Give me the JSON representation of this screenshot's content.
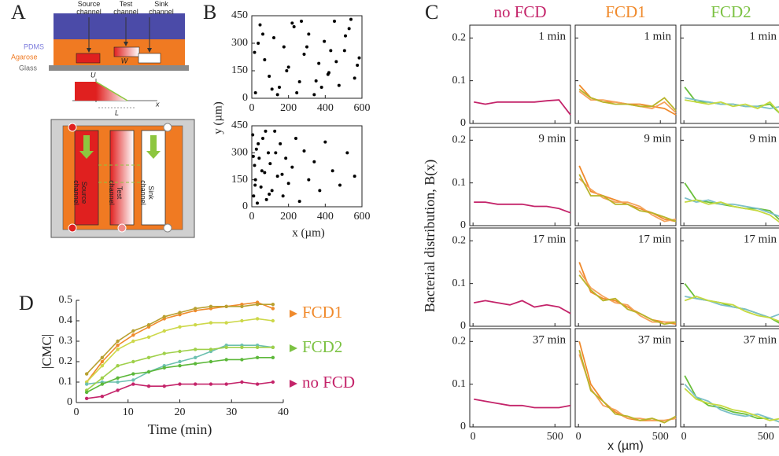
{
  "diagram": {
    "label": "A",
    "cross_section": {
      "channels": [
        [
          "Source",
          "channel"
        ],
        [
          "Test",
          "channel"
        ],
        [
          "Sink",
          "channel"
        ]
      ],
      "layers": [
        "PDMS",
        "Agarose",
        "Glass"
      ],
      "width": "W"
    },
    "profile": {
      "y_label": "U",
      "x_label": "x",
      "length": "L"
    },
    "device": {
      "channels": [
        [
          "Source",
          "channel"
        ],
        [
          "Test",
          "channel"
        ],
        [
          "Sink",
          "channel"
        ]
      ]
    }
  },
  "panel_B": {
    "label": "B",
    "ylabel": "y (µm)",
    "xlabel": "x (µm)"
  },
  "panel_C": {
    "label": "C",
    "columns": [
      {
        "text": "no FCD",
        "color": "#c4246a"
      },
      {
        "text": "FCD1",
        "color": "#f08a2c"
      },
      {
        "text": "FCD2",
        "color": "#7cc243"
      }
    ],
    "ylabel": "Bacterial distribution, B(x)",
    "xlabel": "x (µm)"
  },
  "chart_data": [
    {
      "type": "scatter",
      "color": "#000000",
      "xlim": [
        0,
        600
      ],
      "ylim": [
        0,
        450
      ],
      "xticks": [
        0,
        200,
        400,
        600
      ],
      "yticks": [
        0,
        150,
        300,
        450
      ],
      "x": [
        20,
        45,
        70,
        95,
        120,
        150,
        175,
        200,
        230,
        260,
        285,
        310,
        340,
        365,
        395,
        420,
        450,
        475,
        505,
        530,
        560,
        585,
        35,
        110,
        190,
        270,
        350,
        430,
        510,
        575,
        60,
        140,
        220,
        300,
        380,
        460,
        540,
        15,
        245,
        415
      ],
      "y": [
        30,
        400,
        210,
        120,
        330,
        60,
        280,
        170,
        390,
        90,
        240,
        350,
        20,
        190,
        310,
        140,
        420,
        70,
        260,
        380,
        110,
        220,
        300,
        50,
        150,
        420,
        95,
        260,
        340,
        180,
        350,
        20,
        410,
        280,
        60,
        200,
        430,
        250,
        30,
        130
      ]
    },
    {
      "type": "scatter",
      "color": "#000000",
      "xlim": [
        0,
        600
      ],
      "ylim": [
        0,
        450
      ],
      "xticks": [
        0,
        200,
        400,
        600
      ],
      "yticks": [
        0,
        150,
        300,
        450
      ],
      "x": [
        5,
        10,
        15,
        20,
        25,
        30,
        40,
        50,
        60,
        70,
        80,
        90,
        100,
        110,
        125,
        140,
        155,
        170,
        185,
        200,
        220,
        240,
        260,
        285,
        310,
        340,
        370,
        400,
        440,
        480,
        520,
        560,
        8,
        18,
        35,
        55,
        75,
        95,
        130,
        165
      ],
      "y": [
        400,
        60,
        230,
        150,
        320,
        20,
        270,
        110,
        380,
        190,
        40,
        300,
        240,
        90,
        420,
        170,
        350,
        60,
        270,
        130,
        220,
        380,
        30,
        310,
        150,
        250,
        90,
        360,
        200,
        120,
        300,
        170,
        280,
        120,
        350,
        200,
        420,
        70,
        300,
        180
      ]
    },
    {
      "type": "line",
      "title": "1 min",
      "xlim": [
        -20,
        595
      ],
      "ylim": [
        0,
        0.23
      ],
      "xticks": [
        0,
        500
      ],
      "yticks": [
        0,
        0.1,
        0.2
      ],
      "x": [
        5,
        75,
        150,
        225,
        300,
        375,
        450,
        525,
        595
      ],
      "series": [
        {
          "color": "#c4246a",
          "values": [
            0.05,
            0.045,
            0.05,
            0.05,
            0.05,
            0.05,
            0.053,
            0.055,
            0.02
          ]
        }
      ]
    },
    {
      "type": "line",
      "title": "1 min",
      "xlim": [
        -20,
        595
      ],
      "ylim": [
        0,
        0.23
      ],
      "xticks": [
        0,
        500
      ],
      "yticks": [
        0,
        0.1,
        0.2
      ],
      "x": [
        5,
        75,
        150,
        225,
        300,
        375,
        450,
        525,
        595
      ],
      "series": [
        {
          "color": "#f08a2c",
          "values": [
            0.09,
            0.06,
            0.05,
            0.05,
            0.045,
            0.045,
            0.04,
            0.035,
            0.02
          ]
        },
        {
          "color": "#f5a25a",
          "values": [
            0.075,
            0.055,
            0.055,
            0.05,
            0.045,
            0.04,
            0.035,
            0.05,
            0.025
          ]
        },
        {
          "color": "#b8b429",
          "values": [
            0.08,
            0.06,
            0.05,
            0.045,
            0.045,
            0.04,
            0.04,
            0.06,
            0.03
          ]
        }
      ]
    },
    {
      "type": "line",
      "title": "1 min",
      "xlim": [
        -20,
        595
      ],
      "ylim": [
        0,
        0.23
      ],
      "xticks": [
        0,
        500
      ],
      "yticks": [
        0,
        0.1,
        0.2
      ],
      "x": [
        5,
        75,
        150,
        225,
        300,
        375,
        450,
        525,
        595
      ],
      "series": [
        {
          "color": "#6abf3c",
          "values": [
            0.085,
            0.05,
            0.05,
            0.045,
            0.045,
            0.04,
            0.04,
            0.045,
            0.02
          ]
        },
        {
          "color": "#7bbfc8",
          "values": [
            0.06,
            0.055,
            0.05,
            0.045,
            0.045,
            0.04,
            0.04,
            0.035,
            0.04
          ]
        },
        {
          "color": "#c5d940",
          "values": [
            0.055,
            0.05,
            0.045,
            0.05,
            0.04,
            0.045,
            0.035,
            0.05,
            0.02
          ]
        }
      ]
    },
    {
      "type": "line",
      "title": "9 min",
      "xlim": [
        -20,
        595
      ],
      "ylim": [
        0,
        0.23
      ],
      "xticks": [
        0,
        500
      ],
      "yticks": [
        0,
        0.1,
        0.2
      ],
      "x": [
        5,
        75,
        150,
        225,
        300,
        375,
        450,
        525,
        595
      ],
      "series": [
        {
          "color": "#c4246a",
          "values": [
            0.055,
            0.055,
            0.05,
            0.05,
            0.05,
            0.045,
            0.045,
            0.04,
            0.03
          ]
        }
      ]
    },
    {
      "type": "line",
      "title": "9 min",
      "xlim": [
        -20,
        595
      ],
      "ylim": [
        0,
        0.23
      ],
      "xticks": [
        0,
        500
      ],
      "yticks": [
        0,
        0.1,
        0.2
      ],
      "x": [
        5,
        75,
        150,
        225,
        300,
        375,
        450,
        525,
        595
      ],
      "series": [
        {
          "color": "#f08a2c",
          "values": [
            0.14,
            0.08,
            0.07,
            0.06,
            0.05,
            0.04,
            0.03,
            0.015,
            0.01
          ]
        },
        {
          "color": "#f5a25a",
          "values": [
            0.11,
            0.085,
            0.065,
            0.055,
            0.055,
            0.045,
            0.025,
            0.01,
            0.015
          ]
        },
        {
          "color": "#b8b429",
          "values": [
            0.12,
            0.07,
            0.07,
            0.05,
            0.05,
            0.035,
            0.03,
            0.02,
            0.01
          ]
        }
      ]
    },
    {
      "type": "line",
      "title": "9 min",
      "xlim": [
        -20,
        595
      ],
      "ylim": [
        0,
        0.23
      ],
      "xticks": [
        0,
        500
      ],
      "yticks": [
        0,
        0.1,
        0.2
      ],
      "x": [
        5,
        75,
        150,
        225,
        300,
        375,
        450,
        525,
        595
      ],
      "series": [
        {
          "color": "#6abf3c",
          "values": [
            0.1,
            0.06,
            0.055,
            0.05,
            0.045,
            0.04,
            0.04,
            0.035,
            0.01
          ]
        },
        {
          "color": "#7bbfc8",
          "values": [
            0.065,
            0.055,
            0.06,
            0.05,
            0.05,
            0.045,
            0.04,
            0.03,
            0.02
          ]
        },
        {
          "color": "#c5d940",
          "values": [
            0.055,
            0.06,
            0.05,
            0.055,
            0.045,
            0.04,
            0.035,
            0.025,
            0.005
          ]
        }
      ]
    },
    {
      "type": "line",
      "title": "17 min",
      "xlim": [
        -20,
        595
      ],
      "ylim": [
        0,
        0.23
      ],
      "xticks": [
        0,
        500
      ],
      "yticks": [
        0,
        0.1,
        0.2
      ],
      "x": [
        5,
        75,
        150,
        225,
        300,
        375,
        450,
        525,
        595
      ],
      "series": [
        {
          "color": "#c4246a",
          "values": [
            0.055,
            0.06,
            0.055,
            0.05,
            0.06,
            0.045,
            0.05,
            0.045,
            0.03
          ]
        }
      ]
    },
    {
      "type": "line",
      "title": "17 min",
      "xlim": [
        -20,
        595
      ],
      "ylim": [
        0,
        0.23
      ],
      "xticks": [
        0,
        500
      ],
      "yticks": [
        0,
        0.1,
        0.2
      ],
      "x": [
        5,
        75,
        150,
        225,
        300,
        375,
        450,
        525,
        595
      ],
      "series": [
        {
          "color": "#f08a2c",
          "values": [
            0.15,
            0.08,
            0.065,
            0.06,
            0.045,
            0.03,
            0.015,
            0.01,
            0.005
          ]
        },
        {
          "color": "#f5a25a",
          "values": [
            0.13,
            0.09,
            0.07,
            0.055,
            0.05,
            0.025,
            0.01,
            0.01,
            0.01
          ]
        },
        {
          "color": "#b8b429",
          "values": [
            0.12,
            0.085,
            0.06,
            0.065,
            0.04,
            0.03,
            0.015,
            0.005,
            0.01
          ]
        }
      ]
    },
    {
      "type": "line",
      "title": "17 min",
      "xlim": [
        -20,
        595
      ],
      "ylim": [
        0,
        0.23
      ],
      "xticks": [
        0,
        500
      ],
      "yticks": [
        0,
        0.1,
        0.2
      ],
      "x": [
        5,
        75,
        150,
        225,
        300,
        375,
        450,
        525,
        595
      ],
      "series": [
        {
          "color": "#6abf3c",
          "values": [
            0.1,
            0.065,
            0.06,
            0.055,
            0.045,
            0.04,
            0.03,
            0.02,
            0.005
          ]
        },
        {
          "color": "#7bbfc8",
          "values": [
            0.07,
            0.065,
            0.06,
            0.05,
            0.045,
            0.04,
            0.03,
            0.02,
            0.03
          ]
        },
        {
          "color": "#c5d940",
          "values": [
            0.06,
            0.07,
            0.06,
            0.055,
            0.05,
            0.035,
            0.025,
            0.02,
            0.01
          ]
        }
      ]
    },
    {
      "type": "line",
      "title": "37 min",
      "xlim": [
        -20,
        595
      ],
      "ylim": [
        0,
        0.23
      ],
      "xticks": [
        0,
        500
      ],
      "yticks": [
        0,
        0.1,
        0.2
      ],
      "x": [
        5,
        75,
        150,
        225,
        300,
        375,
        450,
        525,
        595
      ],
      "series": [
        {
          "color": "#c4246a",
          "values": [
            0.065,
            0.06,
            0.055,
            0.05,
            0.05,
            0.045,
            0.045,
            0.045,
            0.05
          ]
        }
      ]
    },
    {
      "type": "line",
      "title": "37 min",
      "xlim": [
        -20,
        595
      ],
      "ylim": [
        0,
        0.23
      ],
      "xticks": [
        0,
        500
      ],
      "yticks": [
        0,
        0.1,
        0.2
      ],
      "x": [
        5,
        75,
        150,
        225,
        300,
        375,
        450,
        525,
        595
      ],
      "series": [
        {
          "color": "#f08a2c",
          "values": [
            0.2,
            0.1,
            0.06,
            0.035,
            0.02,
            0.015,
            0.015,
            0.015,
            0.02
          ]
        },
        {
          "color": "#f5a25a",
          "values": [
            0.17,
            0.09,
            0.05,
            0.04,
            0.02,
            0.02,
            0.015,
            0.015,
            0.02
          ]
        },
        {
          "color": "#b8b429",
          "values": [
            0.18,
            0.085,
            0.06,
            0.03,
            0.025,
            0.015,
            0.02,
            0.01,
            0.025
          ]
        }
      ]
    },
    {
      "type": "line",
      "title": "37 min",
      "xlim": [
        -20,
        595
      ],
      "ylim": [
        0,
        0.23
      ],
      "xticks": [
        0,
        500
      ],
      "yticks": [
        0,
        0.1,
        0.2
      ],
      "x": [
        5,
        75,
        150,
        225,
        300,
        375,
        450,
        525,
        595
      ],
      "series": [
        {
          "color": "#6abf3c",
          "values": [
            0.12,
            0.07,
            0.05,
            0.045,
            0.035,
            0.03,
            0.02,
            0.02,
            0.01
          ]
        },
        {
          "color": "#7bbfc8",
          "values": [
            0.1,
            0.07,
            0.06,
            0.04,
            0.03,
            0.025,
            0.03,
            0.02,
            0.01
          ]
        },
        {
          "color": "#c5d940",
          "values": [
            0.09,
            0.065,
            0.055,
            0.05,
            0.04,
            0.035,
            0.025,
            0.015,
            0.02
          ]
        }
      ]
    },
    {
      "type": "line",
      "label": "D",
      "xlabel": "Time (min)",
      "ylabel": "|CMC|",
      "markers": true,
      "xlim": [
        0,
        40
      ],
      "ylim": [
        0,
        0.5
      ],
      "xticks": [
        0,
        10,
        20,
        30,
        40
      ],
      "yticks": [
        0,
        0.1,
        0.2,
        0.3,
        0.4,
        0.5
      ],
      "x": [
        2,
        5,
        8,
        11,
        14,
        17,
        20,
        23,
        26,
        29,
        32,
        35,
        38
      ],
      "series": [
        {
          "color": "#f08a2c",
          "values": [
            0.1,
            0.2,
            0.28,
            0.33,
            0.37,
            0.41,
            0.43,
            0.45,
            0.46,
            0.47,
            0.48,
            0.49,
            0.46
          ]
        },
        {
          "color": "#b8a030",
          "values": [
            0.14,
            0.22,
            0.3,
            0.35,
            0.38,
            0.42,
            0.44,
            0.46,
            0.47,
            0.47,
            0.47,
            0.48,
            0.48
          ]
        },
        {
          "color": "#cdd84a",
          "values": [
            0.1,
            0.18,
            0.26,
            0.3,
            0.32,
            0.35,
            0.37,
            0.38,
            0.39,
            0.39,
            0.4,
            0.41,
            0.4
          ]
        },
        {
          "color": "#6cc0b0",
          "values": [
            0.09,
            0.1,
            0.1,
            0.11,
            0.15,
            0.18,
            0.2,
            0.22,
            0.25,
            0.28,
            0.28,
            0.28,
            0.27
          ]
        },
        {
          "color": "#9fd04a",
          "values": [
            0.06,
            0.12,
            0.18,
            0.2,
            0.22,
            0.24,
            0.25,
            0.26,
            0.26,
            0.27,
            0.27,
            0.27,
            0.27
          ]
        },
        {
          "color": "#5cb83a",
          "values": [
            0.05,
            0.09,
            0.12,
            0.14,
            0.15,
            0.17,
            0.18,
            0.19,
            0.2,
            0.21,
            0.21,
            0.22,
            0.22
          ]
        },
        {
          "color": "#c4246a",
          "values": [
            0.02,
            0.03,
            0.06,
            0.09,
            0.08,
            0.08,
            0.09,
            0.09,
            0.09,
            0.09,
            0.1,
            0.09,
            0.1
          ]
        }
      ],
      "annotations": [
        {
          "text": "FCD1",
          "color": "#f08a2c"
        },
        {
          "text": "FCD2",
          "color": "#7cc243"
        },
        {
          "text": "no FCD",
          "color": "#c4246a"
        }
      ]
    }
  ]
}
